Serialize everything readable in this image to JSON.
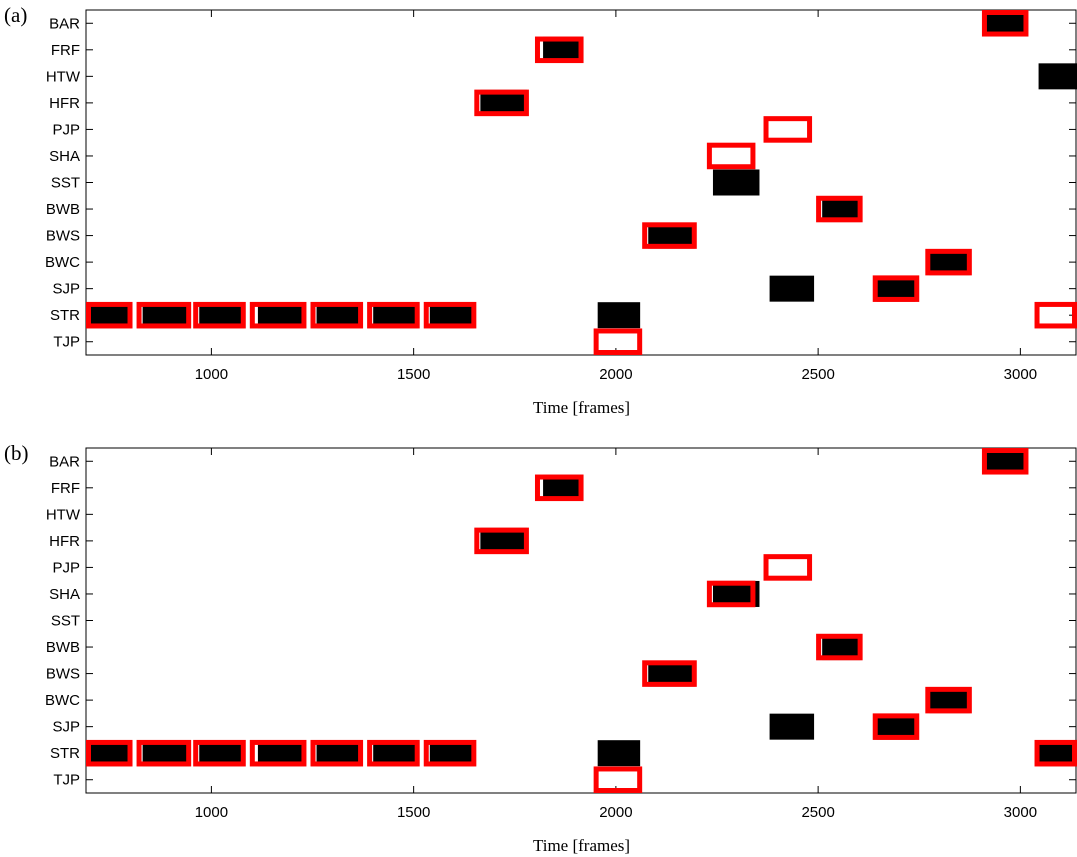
{
  "chart_data": [
    {
      "panel_label": "(a)",
      "type": "timeline",
      "xlabel": "Time [frames]",
      "xlim": [
        690,
        3140
      ],
      "xticks": [
        1000,
        1500,
        2000,
        2500,
        3000
      ],
      "categories": [
        "BAR",
        "FRF",
        "HTW",
        "HFR",
        "PJP",
        "SHA",
        "SST",
        "BWB",
        "BWS",
        "BWC",
        "SJP",
        "STR",
        "TJP"
      ],
      "colors": {
        "detected": "#000000",
        "ground_truth": "#ff0000"
      },
      "series": [
        {
          "name": "",
          "kind": "filled-black",
          "intervals": [
            {
              "label": "BAR",
              "start": 2915,
              "end": 3015
            },
            {
              "label": "FRF",
              "start": 1820,
              "end": 1920
            },
            {
              "label": "HTW",
              "start": 3045,
              "end": 3145
            },
            {
              "label": "HFR",
              "start": 1665,
              "end": 1780
            },
            {
              "label": "SST",
              "start": 2240,
              "end": 2355
            },
            {
              "label": "BWB",
              "start": 2510,
              "end": 2605
            },
            {
              "label": "BWS",
              "start": 2080,
              "end": 2195
            },
            {
              "label": "BWC",
              "start": 2775,
              "end": 2875
            },
            {
              "label": "SJP",
              "start": 2380,
              "end": 2490
            },
            {
              "label": "SJP",
              "start": 2645,
              "end": 2740
            },
            {
              "label": "STR",
              "start": 690,
              "end": 800
            },
            {
              "label": "STR",
              "start": 830,
              "end": 945
            },
            {
              "label": "STR",
              "start": 970,
              "end": 1080
            },
            {
              "label": "STR",
              "start": 1115,
              "end": 1230
            },
            {
              "label": "STR",
              "start": 1260,
              "end": 1370
            },
            {
              "label": "STR",
              "start": 1400,
              "end": 1510
            },
            {
              "label": "STR",
              "start": 1540,
              "end": 1650
            },
            {
              "label": "STR",
              "start": 1955,
              "end": 2060
            }
          ]
        },
        {
          "name": "",
          "kind": "red-outline",
          "intervals": [
            {
              "label": "BAR",
              "start": 2905,
              "end": 3020
            },
            {
              "label": "FRF",
              "start": 1800,
              "end": 1920
            },
            {
              "label": "HFR",
              "start": 1650,
              "end": 1785
            },
            {
              "label": "PJP",
              "start": 2365,
              "end": 2485
            },
            {
              "label": "SHA",
              "start": 2225,
              "end": 2345
            },
            {
              "label": "BWB",
              "start": 2495,
              "end": 2610
            },
            {
              "label": "BWS",
              "start": 2065,
              "end": 2200
            },
            {
              "label": "BWC",
              "start": 2765,
              "end": 2880
            },
            {
              "label": "SJP",
              "start": 2635,
              "end": 2750
            },
            {
              "label": "STR",
              "start": 690,
              "end": 805
            },
            {
              "label": "STR",
              "start": 815,
              "end": 950
            },
            {
              "label": "STR",
              "start": 955,
              "end": 1085
            },
            {
              "label": "STR",
              "start": 1095,
              "end": 1235
            },
            {
              "label": "STR",
              "start": 1245,
              "end": 1375
            },
            {
              "label": "STR",
              "start": 1385,
              "end": 1515
            },
            {
              "label": "STR",
              "start": 1525,
              "end": 1655
            },
            {
              "label": "STR",
              "start": 3035,
              "end": 3145
            },
            {
              "label": "TJP",
              "start": 1945,
              "end": 2065
            }
          ]
        }
      ]
    },
    {
      "panel_label": "(b)",
      "type": "timeline",
      "xlabel": "Time [frames]",
      "xlim": [
        690,
        3140
      ],
      "xticks": [
        1000,
        1500,
        2000,
        2500,
        3000
      ],
      "categories": [
        "BAR",
        "FRF",
        "HTW",
        "HFR",
        "PJP",
        "SHA",
        "SST",
        "BWB",
        "BWS",
        "BWC",
        "SJP",
        "STR",
        "TJP"
      ],
      "colors": {
        "detected": "#000000",
        "ground_truth": "#ff0000"
      },
      "series": [
        {
          "name": "",
          "kind": "filled-black",
          "intervals": [
            {
              "label": "BAR",
              "start": 2915,
              "end": 3015
            },
            {
              "label": "FRF",
              "start": 1820,
              "end": 1920
            },
            {
              "label": "HFR",
              "start": 1665,
              "end": 1780
            },
            {
              "label": "SHA",
              "start": 2240,
              "end": 2355
            },
            {
              "label": "BWB",
              "start": 2510,
              "end": 2605
            },
            {
              "label": "BWS",
              "start": 2080,
              "end": 2195
            },
            {
              "label": "BWC",
              "start": 2775,
              "end": 2875
            },
            {
              "label": "SJP",
              "start": 2380,
              "end": 2490
            },
            {
              "label": "SJP",
              "start": 2645,
              "end": 2740
            },
            {
              "label": "STR",
              "start": 690,
              "end": 800
            },
            {
              "label": "STR",
              "start": 830,
              "end": 945
            },
            {
              "label": "STR",
              "start": 970,
              "end": 1080
            },
            {
              "label": "STR",
              "start": 1115,
              "end": 1230
            },
            {
              "label": "STR",
              "start": 1260,
              "end": 1370
            },
            {
              "label": "STR",
              "start": 1400,
              "end": 1510
            },
            {
              "label": "STR",
              "start": 1540,
              "end": 1650
            },
            {
              "label": "STR",
              "start": 1955,
              "end": 2060
            },
            {
              "label": "STR",
              "start": 3045,
              "end": 3145
            }
          ]
        },
        {
          "name": "",
          "kind": "red-outline",
          "intervals": [
            {
              "label": "BAR",
              "start": 2905,
              "end": 3020
            },
            {
              "label": "FRF",
              "start": 1800,
              "end": 1920
            },
            {
              "label": "HFR",
              "start": 1650,
              "end": 1785
            },
            {
              "label": "PJP",
              "start": 2365,
              "end": 2485
            },
            {
              "label": "SHA",
              "start": 2225,
              "end": 2345
            },
            {
              "label": "BWB",
              "start": 2495,
              "end": 2610
            },
            {
              "label": "BWS",
              "start": 2065,
              "end": 2200
            },
            {
              "label": "BWC",
              "start": 2765,
              "end": 2880
            },
            {
              "label": "SJP",
              "start": 2635,
              "end": 2750
            },
            {
              "label": "STR",
              "start": 690,
              "end": 805
            },
            {
              "label": "STR",
              "start": 815,
              "end": 950
            },
            {
              "label": "STR",
              "start": 955,
              "end": 1085
            },
            {
              "label": "STR",
              "start": 1095,
              "end": 1235
            },
            {
              "label": "STR",
              "start": 1245,
              "end": 1375
            },
            {
              "label": "STR",
              "start": 1385,
              "end": 1515
            },
            {
              "label": "STR",
              "start": 1525,
              "end": 1655
            },
            {
              "label": "STR",
              "start": 3035,
              "end": 3145
            },
            {
              "label": "TJP",
              "start": 1945,
              "end": 2065
            }
          ]
        }
      ]
    }
  ]
}
